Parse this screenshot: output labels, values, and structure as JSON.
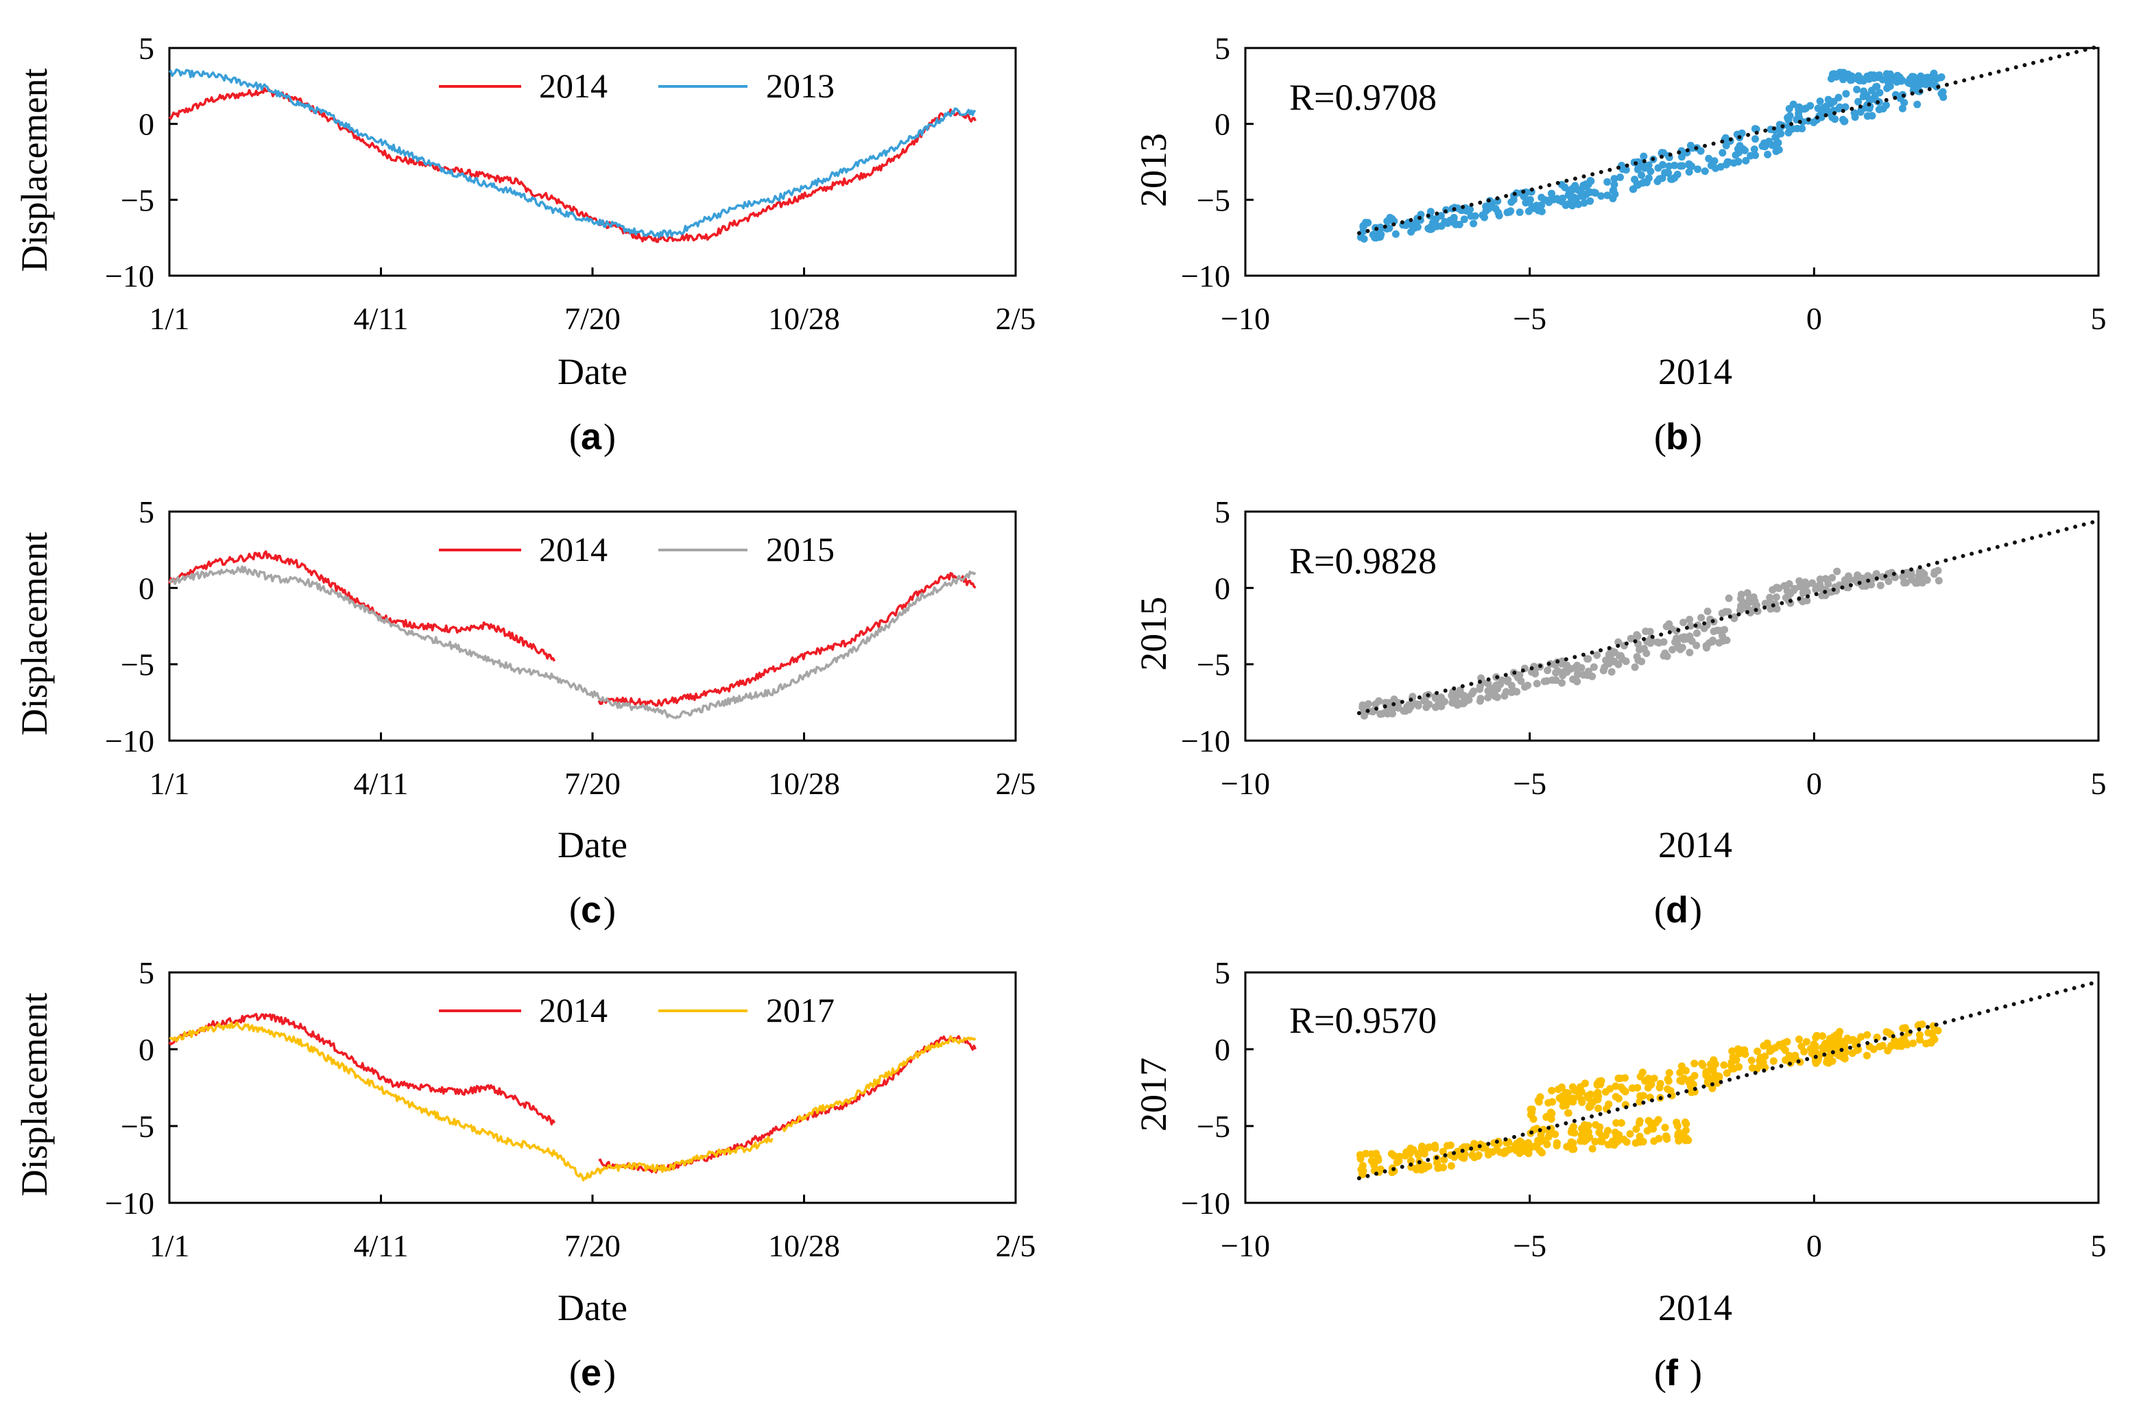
{
  "figure": {
    "panels": [
      {
        "id": "a",
        "kind": "line",
        "caption_letter": "a",
        "series_name": "2013"
      },
      {
        "id": "b",
        "kind": "scatter",
        "caption_letter": "b",
        "series_name": "2013"
      },
      {
        "id": "c",
        "kind": "line",
        "caption_letter": "c",
        "series_name": "2015"
      },
      {
        "id": "d",
        "kind": "scatter",
        "caption_letter": "d",
        "series_name": "2015"
      },
      {
        "id": "e",
        "kind": "line",
        "caption_letter": "e",
        "series_name": "2017"
      },
      {
        "id": "f",
        "kind": "scatter",
        "caption_letter": "f",
        "series_name": "2017"
      }
    ]
  },
  "colors": {
    "2014": "#ee1c24",
    "2013": "#3a9fd8",
    "2015": "#a6a6a6",
    "2017": "#fbbf00",
    "fit": "#111111",
    "axis": "#000000"
  },
  "chart_data": [
    {
      "id": "a",
      "type": "line",
      "xlabel": "Date",
      "ylabel": "Displacement",
      "x_tick_labels": [
        "1/1",
        "4/11",
        "7/20",
        "10/28",
        "2/5"
      ],
      "x_ticks_day": [
        0,
        100,
        200,
        300,
        400
      ],
      "y_ticks": [
        5,
        0,
        -5,
        -10
      ],
      "ylim": [
        -10,
        5
      ],
      "xlim_day": [
        0,
        400
      ],
      "series": [
        {
          "name": "2014",
          "key": "s2014a",
          "points": [
            [
              0,
              0.4
            ],
            [
              20,
              1.6
            ],
            [
              45,
              2.2
            ],
            [
              60,
              1.6
            ],
            [
              75,
              0.4
            ],
            [
              90,
              -1.0
            ],
            [
              105,
              -2.2
            ],
            [
              125,
              -2.8
            ],
            [
              140,
              -3.2
            ],
            [
              155,
              -3.6
            ],
            [
              165,
              -3.8
            ],
            [
              170,
              -4.5
            ],
            [
              180,
              -4.8
            ],
            [
              195,
              -6.0
            ],
            [
              210,
              -6.8
            ],
            [
              225,
              -7.6
            ],
            [
              240,
              -7.5
            ],
            [
              255,
              -7.4
            ],
            [
              265,
              -6.7
            ],
            [
              280,
              -5.8
            ],
            [
              295,
              -5.0
            ],
            [
              315,
              -4.0
            ],
            [
              335,
              -3.0
            ],
            [
              350,
              -1.5
            ],
            [
              360,
              0.0
            ],
            [
              368,
              0.8
            ],
            [
              375,
              0.6
            ],
            [
              381,
              0.2
            ]
          ]
        },
        {
          "name": "2013",
          "key": "s2013a",
          "points": [
            [
              0,
              3.4
            ],
            [
              20,
              3.2
            ],
            [
              45,
              2.4
            ],
            [
              60,
              1.4
            ],
            [
              75,
              0.6
            ],
            [
              90,
              -0.6
            ],
            [
              110,
              -1.8
            ],
            [
              130,
              -3.0
            ],
            [
              150,
              -4.0
            ],
            [
              165,
              -4.6
            ],
            [
              180,
              -5.6
            ],
            [
              195,
              -6.2
            ],
            [
              210,
              -6.7
            ],
            [
              225,
              -7.3
            ],
            [
              240,
              -7.2
            ],
            [
              255,
              -6.2
            ],
            [
              270,
              -5.4
            ],
            [
              285,
              -5.0
            ],
            [
              300,
              -4.2
            ],
            [
              320,
              -3.0
            ],
            [
              340,
              -1.8
            ],
            [
              355,
              -0.6
            ],
            [
              370,
              0.8
            ],
            [
              381,
              0.8
            ]
          ]
        }
      ],
      "legend": [
        "2014",
        "2013"
      ]
    },
    {
      "id": "b",
      "type": "scatter",
      "annotation": "R=0.9708",
      "xlabel": "2014",
      "ylabel": "2013",
      "x_ticks": [
        -10,
        -5,
        0,
        5
      ],
      "y_ticks": [
        5,
        0,
        -5,
        -10
      ],
      "xlim": [
        -10,
        5
      ],
      "ylim": [
        -10,
        5
      ],
      "fit_line": {
        "x": [
          -8,
          5
        ],
        "y": [
          -7.2,
          5.1
        ]
      },
      "point_bands": [
        {
          "x": [
            -8,
            -6
          ],
          "y_center": [
            -7.1,
            -5.9
          ],
          "spread": 0.6
        },
        {
          "x": [
            -6,
            -3.5
          ],
          "y_center": [
            -5.8,
            -4.1
          ],
          "spread": 0.8
        },
        {
          "x": [
            -3.5,
            -0.5
          ],
          "y_center": [
            -3.6,
            -0.8
          ],
          "spread": 1.0
        },
        {
          "x": [
            -0.5,
            2.3
          ],
          "y_center": [
            0.2,
            2.6
          ],
          "spread": 1.0
        },
        {
          "x": [
            0.3,
            2.2
          ],
          "y_center": [
            3.2,
            2.8
          ],
          "spread": 0.3
        }
      ]
    },
    {
      "id": "c",
      "type": "line",
      "xlabel": "Date",
      "ylabel": "Displacement",
      "x_tick_labels": [
        "1/1",
        "4/11",
        "7/20",
        "10/28",
        "2/5"
      ],
      "x_ticks_day": [
        0,
        100,
        200,
        300,
        400
      ],
      "y_ticks": [
        5,
        0,
        -5,
        -10
      ],
      "ylim": [
        -10,
        5
      ],
      "xlim_day": [
        0,
        400
      ],
      "series": [
        {
          "name": "2014",
          "key": "s2014c1",
          "points": [
            [
              0,
              0.4
            ],
            [
              20,
              1.6
            ],
            [
              45,
              2.2
            ],
            [
              60,
              1.6
            ],
            [
              75,
              0.4
            ],
            [
              90,
              -1.0
            ],
            [
              105,
              -2.2
            ],
            [
              125,
              -2.6
            ],
            [
              140,
              -2.8
            ],
            [
              150,
              -2.4
            ],
            [
              160,
              -3.0
            ],
            [
              168,
              -3.6
            ],
            [
              176,
              -4.2
            ],
            [
              182,
              -4.8
            ]
          ]
        },
        {
          "name": "2014",
          "key": "s2014c2",
          "points": [
            [
              203,
              -7.4
            ],
            [
              215,
              -7.4
            ],
            [
              230,
              -7.6
            ],
            [
              245,
              -7.2
            ],
            [
              260,
              -6.8
            ],
            [
              275,
              -6.0
            ],
            [
              290,
              -5.0
            ],
            [
              305,
              -4.2
            ],
            [
              320,
              -3.6
            ],
            [
              340,
              -2.0
            ],
            [
              355,
              -0.2
            ],
            [
              368,
              0.8
            ],
            [
              375,
              0.6
            ],
            [
              381,
              0.0
            ]
          ]
        },
        {
          "name": "2015",
          "key": "s2015c",
          "points": [
            [
              0,
              0.4
            ],
            [
              20,
              1.0
            ],
            [
              35,
              1.2
            ],
            [
              50,
              0.6
            ],
            [
              65,
              0.4
            ],
            [
              80,
              -0.5
            ],
            [
              95,
              -1.6
            ],
            [
              110,
              -2.8
            ],
            [
              130,
              -3.6
            ],
            [
              150,
              -4.6
            ],
            [
              165,
              -5.4
            ],
            [
              180,
              -5.8
            ],
            [
              195,
              -6.6
            ],
            [
              210,
              -7.6
            ],
            [
              225,
              -7.9
            ],
            [
              240,
              -8.4
            ],
            [
              255,
              -7.8
            ],
            [
              270,
              -7.2
            ],
            [
              285,
              -6.8
            ],
            [
              300,
              -5.8
            ],
            [
              320,
              -4.4
            ],
            [
              340,
              -2.4
            ],
            [
              355,
              -0.6
            ],
            [
              370,
              0.4
            ],
            [
              381,
              1.0
            ]
          ]
        }
      ],
      "legend": [
        "2014",
        "2015"
      ]
    },
    {
      "id": "d",
      "type": "scatter",
      "annotation": "R=0.9828",
      "xlabel": "2014",
      "ylabel": "2015",
      "x_ticks": [
        -10,
        -5,
        0,
        5
      ],
      "y_ticks": [
        5,
        0,
        -5,
        -10
      ],
      "xlim": [
        -10,
        5
      ],
      "ylim": [
        -10,
        5
      ],
      "fit_line": {
        "x": [
          -8,
          5
        ],
        "y": [
          -8.2,
          4.4
        ]
      },
      "point_bands": [
        {
          "x": [
            -8,
            -6
          ],
          "y_center": [
            -8.0,
            -7.1
          ],
          "spread": 0.5
        },
        {
          "x": [
            -6,
            -3.5
          ],
          "y_center": [
            -6.8,
            -4.8
          ],
          "spread": 0.8
        },
        {
          "x": [
            -3.5,
            -1.5
          ],
          "y_center": [
            -4.6,
            -2.3
          ],
          "spread": 1.2
        },
        {
          "x": [
            -1.5,
            0.5
          ],
          "y_center": [
            -1.4,
            0.5
          ],
          "spread": 0.8
        },
        {
          "x": [
            0.5,
            2.2
          ],
          "y_center": [
            0.4,
            0.8
          ],
          "spread": 0.4
        }
      ]
    },
    {
      "id": "e",
      "type": "line",
      "xlabel": "Date",
      "ylabel": "Displacement",
      "x_tick_labels": [
        "1/1",
        "4/11",
        "7/20",
        "10/28",
        "2/5"
      ],
      "x_ticks_day": [
        0,
        100,
        200,
        300,
        400
      ],
      "y_ticks": [
        5,
        0,
        -5,
        -10
      ],
      "ylim": [
        -10,
        5
      ],
      "xlim_day": [
        0,
        400
      ],
      "series": [
        {
          "name": "2014",
          "key": "s2014e1",
          "points": [
            [
              0,
              0.4
            ],
            [
              20,
              1.6
            ],
            [
              45,
              2.2
            ],
            [
              60,
              1.6
            ],
            [
              75,
              0.4
            ],
            [
              90,
              -1.0
            ],
            [
              105,
              -2.2
            ],
            [
              125,
              -2.6
            ],
            [
              140,
              -2.8
            ],
            [
              150,
              -2.4
            ],
            [
              160,
              -3.0
            ],
            [
              168,
              -3.6
            ],
            [
              176,
              -4.2
            ],
            [
              182,
              -4.8
            ]
          ]
        },
        {
          "name": "2014",
          "key": "s2014e2",
          "points": [
            [
              203,
              -7.4
            ],
            [
              215,
              -7.6
            ],
            [
              230,
              -7.8
            ],
            [
              245,
              -7.4
            ],
            [
              260,
              -6.8
            ],
            [
              275,
              -6.0
            ],
            [
              290,
              -5.0
            ],
            [
              305,
              -4.2
            ],
            [
              320,
              -3.6
            ],
            [
              340,
              -2.0
            ],
            [
              355,
              -0.2
            ],
            [
              368,
              0.8
            ],
            [
              375,
              0.6
            ],
            [
              381,
              0.0
            ]
          ]
        },
        {
          "name": "2017",
          "key": "s2017e1",
          "points": [
            [
              0,
              0.6
            ],
            [
              15,
              1.2
            ],
            [
              30,
              1.6
            ],
            [
              45,
              1.2
            ],
            [
              60,
              0.6
            ],
            [
              75,
              -0.6
            ],
            [
              90,
              -1.8
            ],
            [
              105,
              -3.0
            ],
            [
              120,
              -4.0
            ],
            [
              140,
              -5.0
            ],
            [
              160,
              -6.0
            ],
            [
              175,
              -6.4
            ],
            [
              185,
              -7.0
            ],
            [
              195,
              -8.4
            ],
            [
              205,
              -7.8
            ],
            [
              220,
              -7.6
            ],
            [
              235,
              -7.8
            ],
            [
              250,
              -7.0
            ],
            [
              265,
              -6.6
            ],
            [
              275,
              -6.4
            ],
            [
              285,
              -5.8
            ]
          ]
        },
        {
          "name": "2017",
          "key": "s2017e2",
          "points": [
            [
              290,
              -5.2
            ],
            [
              305,
              -4.0
            ],
            [
              320,
              -3.4
            ],
            [
              340,
              -1.6
            ],
            [
              355,
              -0.2
            ],
            [
              368,
              0.6
            ],
            [
              381,
              0.6
            ]
          ]
        }
      ],
      "legend": [
        "2014",
        "2017"
      ]
    },
    {
      "id": "f",
      "type": "scatter",
      "annotation": "R=0.9570",
      "xlabel": "2014",
      "ylabel": "2017",
      "x_ticks": [
        -10,
        -5,
        0,
        5
      ],
      "y_ticks": [
        5,
        0,
        -5,
        -10
      ],
      "xlim": [
        -10,
        5
      ],
      "ylim": [
        -10,
        5
      ],
      "fit_line": {
        "x": [
          -8,
          5
        ],
        "y": [
          -8.4,
          4.4
        ]
      },
      "point_bands": [
        {
          "x": [
            -8,
            -6.2
          ],
          "y_center": [
            -7.6,
            -6.8
          ],
          "spread": 0.8
        },
        {
          "x": [
            -6.2,
            -5.0
          ],
          "y_center": [
            -6.6,
            -6.4
          ],
          "spread": 0.5
        },
        {
          "x": [
            -5.0,
            -2.2
          ],
          "y_center": [
            -6.0,
            -5.2
          ],
          "spread": 0.8
        },
        {
          "x": [
            -5.0,
            -1.5
          ],
          "y_center": [
            -3.8,
            -1.5
          ],
          "spread": 1.0
        },
        {
          "x": [
            -1.5,
            0.5
          ],
          "y_center": [
            -0.8,
            0.4
          ],
          "spread": 0.8
        },
        {
          "x": [
            0,
            2.2
          ],
          "y_center": [
            -0.4,
            1.2
          ],
          "spread": 0.7
        }
      ]
    }
  ]
}
